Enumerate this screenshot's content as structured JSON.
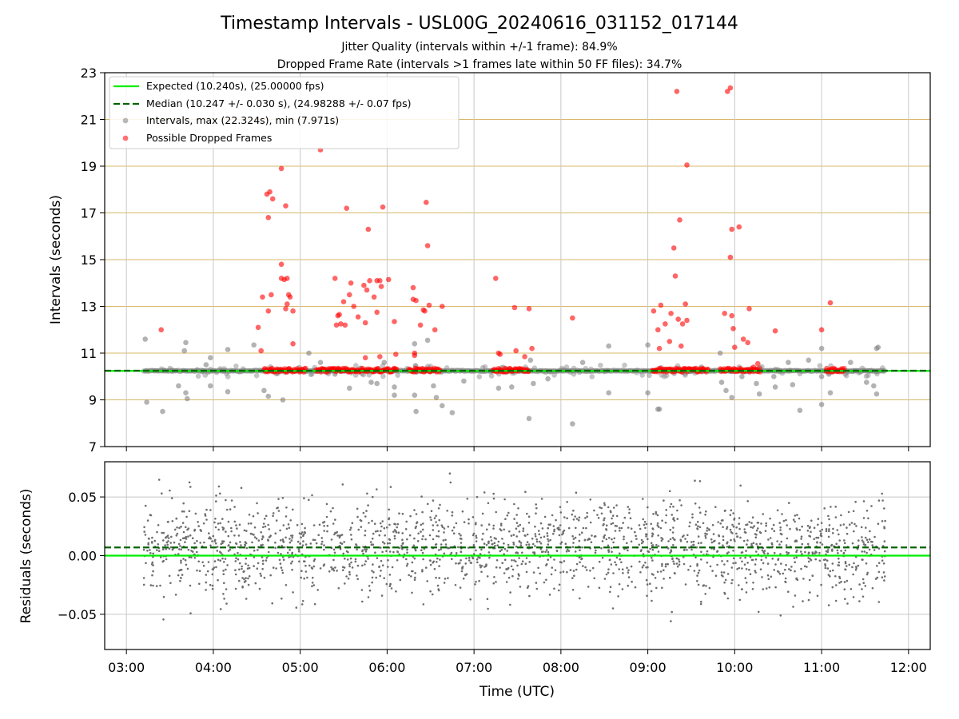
{
  "figure": {
    "title": "Timestamp Intervals - USL00G_20240616_031152_017144",
    "subtitle_line1": "Jitter Quality (intervals within +/-1 frame): 84.9%",
    "subtitle_line2": "Dropped Frame Rate (intervals >1 frames late within 50 FF files): 34.7%"
  },
  "colors": {
    "expected": "#00ee00",
    "median": "#006400",
    "intervals": "#808080",
    "dropped": "#ff0000",
    "hgrid": "#d9b86a",
    "vgrid": "#c8c8c8"
  },
  "chart_data": [
    {
      "type": "scatter",
      "ylabel": "Intervals (seconds)",
      "xlim": [
        "02:45",
        "12:15"
      ],
      "ylim": [
        7,
        23
      ],
      "yticks": [
        7,
        9,
        11,
        13,
        15,
        17,
        19,
        21,
        23
      ],
      "xticks": [
        "03:00",
        "04:00",
        "05:00",
        "06:00",
        "07:00",
        "08:00",
        "09:00",
        "10:00",
        "11:00",
        "12:00"
      ],
      "grid": true,
      "legend_position": "upper-left",
      "reference_lines": [
        {
          "name": "Expected (10.240s), (25.00000 fps)",
          "y": 10.24,
          "style": "solid"
        },
        {
          "name": "Median (10.247 +/- 0.030 s), (24.98288 +/- 0.07 fps)",
          "y": 10.247,
          "style": "dashed"
        }
      ],
      "series": [
        {
          "name": "Intervals, max (22.324s), min (7.971s)",
          "baseline": 10.24,
          "range": [
            "03:12",
            "11:44"
          ],
          "outliers": [
            [
              "03:13",
              11.6
            ],
            [
              "03:14",
              8.9
            ],
            [
              "03:25",
              8.5
            ],
            [
              "03:36",
              9.6
            ],
            [
              "03:40",
              11.1
            ],
            [
              "03:41",
              9.3
            ],
            [
              "03:41",
              11.45
            ],
            [
              "03:42",
              9.05
            ],
            [
              "03:55",
              10.5
            ],
            [
              "03:58",
              10.8
            ],
            [
              "03:58",
              9.6
            ],
            [
              "04:10",
              11.15
            ],
            [
              "04:10",
              9.35
            ],
            [
              "04:28",
              11.35
            ],
            [
              "04:35",
              9.4
            ],
            [
              "04:38",
              9.15
            ],
            [
              "04:48",
              9.0
            ],
            [
              "05:06",
              11.0
            ],
            [
              "05:14",
              10.6
            ],
            [
              "05:24",
              10.1
            ],
            [
              "05:34",
              9.5
            ],
            [
              "05:49",
              9.75
            ],
            [
              "05:53",
              9.7
            ],
            [
              "05:58",
              10.6
            ],
            [
              "06:05",
              9.55
            ],
            [
              "06:05",
              9.2
            ],
            [
              "06:19",
              9.2
            ],
            [
              "06:19",
              11.4
            ],
            [
              "06:20",
              8.5
            ],
            [
              "06:28",
              11.55
            ],
            [
              "06:32",
              9.6
            ],
            [
              "06:34",
              9.1
            ],
            [
              "06:38",
              8.75
            ],
            [
              "06:45",
              8.45
            ],
            [
              "06:53",
              9.8
            ],
            [
              "07:17",
              9.5
            ],
            [
              "07:26",
              9.55
            ],
            [
              "07:39",
              10.7
            ],
            [
              "07:41",
              9.7
            ],
            [
              "07:51",
              9.9
            ],
            [
              "07:38",
              8.2
            ],
            [
              "08:08",
              7.97
            ],
            [
              "08:15",
              10.6
            ],
            [
              "08:33",
              11.3
            ],
            [
              "08:33",
              9.3
            ],
            [
              "09:00",
              9.3
            ],
            [
              "09:00",
              11.35
            ],
            [
              "09:07",
              8.6
            ],
            [
              "09:08",
              8.6
            ],
            [
              "09:37",
              10.4
            ],
            [
              "09:50",
              11.0
            ],
            [
              "09:51",
              9.75
            ],
            [
              "09:54",
              9.4
            ],
            [
              "09:58",
              9.1
            ],
            [
              "10:05",
              10.0
            ],
            [
              "10:10",
              10.3
            ],
            [
              "10:15",
              9.7
            ],
            [
              "10:17",
              9.25
            ],
            [
              "10:27",
              10.0
            ],
            [
              "10:28",
              10.3
            ],
            [
              "10:28",
              9.55
            ],
            [
              "10:37",
              10.6
            ],
            [
              "10:40",
              9.65
            ],
            [
              "10:45",
              8.55
            ],
            [
              "10:51",
              10.7
            ],
            [
              "11:00",
              8.8
            ],
            [
              "11:00",
              11.2
            ],
            [
              "11:00",
              10.0
            ],
            [
              "11:05",
              10.1
            ],
            [
              "11:06",
              9.3
            ],
            [
              "11:20",
              10.6
            ],
            [
              "11:31",
              9.75
            ],
            [
              "11:36",
              9.6
            ],
            [
              "11:38",
              11.2
            ],
            [
              "11:38",
              9.25
            ],
            [
              "11:39",
              11.25
            ]
          ]
        },
        {
          "name": "Possible Dropped Frames",
          "baseline": 10.27,
          "segments": [
            [
              "04:35",
              "05:04"
            ],
            [
              "05:11",
              "06:07"
            ],
            [
              "06:15",
              "06:37"
            ],
            [
              "07:13",
              "07:38"
            ],
            [
              "09:03",
              "09:42"
            ],
            [
              "09:50",
              "10:18"
            ],
            [
              "11:03",
              "11:16"
            ]
          ],
          "points": [
            [
              "03:24",
              12.0
            ],
            [
              "04:31",
              12.1
            ],
            [
              "04:33",
              11.1
            ],
            [
              "04:34",
              13.4
            ],
            [
              "04:37",
              17.8
            ],
            [
              "04:38",
              16.8
            ],
            [
              "04:38",
              12.8
            ],
            [
              "04:39",
              17.9
            ],
            [
              "04:40",
              13.5
            ],
            [
              "04:41",
              17.6
            ],
            [
              "04:47",
              18.9
            ],
            [
              "04:47",
              14.8
            ],
            [
              "04:47",
              14.2
            ],
            [
              "04:49",
              14.15
            ],
            [
              "04:50",
              17.3
            ],
            [
              "04:50",
              12.9
            ],
            [
              "04:51",
              14.2
            ],
            [
              "04:51",
              13.1
            ],
            [
              "04:52",
              13.5
            ],
            [
              "04:53",
              13.4
            ],
            [
              "04:55",
              12.8
            ],
            [
              "04:55",
              11.4
            ],
            [
              "05:14",
              19.7
            ],
            [
              "05:24",
              14.2
            ],
            [
              "05:25",
              12.2
            ],
            [
              "05:26",
              12.6
            ],
            [
              "05:27",
              12.65
            ],
            [
              "05:28",
              12.25
            ],
            [
              "05:30",
              13.2
            ],
            [
              "05:31",
              12.2
            ],
            [
              "05:32",
              17.2
            ],
            [
              "05:34",
              13.5
            ],
            [
              "05:35",
              14.0
            ],
            [
              "05:37",
              13.0
            ],
            [
              "05:40",
              12.55
            ],
            [
              "05:44",
              13.9
            ],
            [
              "05:45",
              10.8
            ],
            [
              "05:45",
              12.3
            ],
            [
              "05:46",
              13.7
            ],
            [
              "05:47",
              16.3
            ],
            [
              "05:48",
              14.1
            ],
            [
              "05:51",
              13.4
            ],
            [
              "05:53",
              14.1
            ],
            [
              "05:53",
              12.75
            ],
            [
              "05:55",
              10.85
            ],
            [
              "05:55",
              14.1
            ],
            [
              "05:57",
              17.25
            ],
            [
              "05:56",
              13.85
            ],
            [
              "06:01",
              14.15
            ],
            [
              "06:05",
              12.35
            ],
            [
              "06:06",
              10.95
            ],
            [
              "06:18",
              13.8
            ],
            [
              "06:18",
              13.3
            ],
            [
              "06:19",
              11.0
            ],
            [
              "06:19",
              10.9
            ],
            [
              "06:20",
              13.25
            ],
            [
              "06:23",
              12.2
            ],
            [
              "06:25",
              12.85
            ],
            [
              "06:26",
              12.8
            ],
            [
              "06:27",
              17.45
            ],
            [
              "06:28",
              15.6
            ],
            [
              "06:29",
              13.05
            ],
            [
              "06:33",
              12.0
            ],
            [
              "06:38",
              13.0
            ],
            [
              "07:15",
              14.2
            ],
            [
              "07:17",
              11.0
            ],
            [
              "07:18",
              10.95
            ],
            [
              "07:28",
              12.95
            ],
            [
              "07:29",
              11.1
            ],
            [
              "07:35",
              10.85
            ],
            [
              "07:38",
              12.9
            ],
            [
              "07:40",
              11.2
            ],
            [
              "08:08",
              12.5
            ],
            [
              "09:04",
              12.8
            ],
            [
              "09:07",
              12.0
            ],
            [
              "09:08",
              11.2
            ],
            [
              "09:09",
              13.05
            ],
            [
              "09:12",
              12.25
            ],
            [
              "09:15",
              11.5
            ],
            [
              "09:16",
              12.7
            ],
            [
              "09:18",
              15.5
            ],
            [
              "09:19",
              14.3
            ],
            [
              "09:20",
              22.2
            ],
            [
              "09:21",
              12.45
            ],
            [
              "09:22",
              16.7
            ],
            [
              "09:23",
              11.3
            ],
            [
              "09:24",
              12.25
            ],
            [
              "09:26",
              13.1
            ],
            [
              "09:27",
              19.05
            ],
            [
              "09:27",
              12.4
            ],
            [
              "09:53",
              12.7
            ],
            [
              "09:55",
              22.2
            ],
            [
              "09:57",
              22.35
            ],
            [
              "09:57",
              15.1
            ],
            [
              "09:58",
              16.3
            ],
            [
              "09:58",
              12.6
            ],
            [
              "09:59",
              12.05
            ],
            [
              "10:00",
              11.25
            ],
            [
              "10:03",
              16.4
            ],
            [
              "10:06",
              11.6
            ],
            [
              "10:09",
              11.45
            ],
            [
              "10:10",
              12.9
            ],
            [
              "10:13",
              10.4
            ],
            [
              "10:16",
              10.55
            ],
            [
              "10:28",
              11.95
            ],
            [
              "11:00",
              12.0
            ],
            [
              "11:06",
              13.15
            ]
          ]
        }
      ]
    },
    {
      "type": "scatter",
      "xlabel": "Time (UTC)",
      "ylabel": "Residuals (seconds)",
      "xlim": [
        "02:45",
        "12:15"
      ],
      "ylim": [
        -0.08,
        0.08
      ],
      "yticks": [
        0.05,
        0.0,
        -0.05
      ],
      "ytick_labels": [
        "0.05",
        "0.00",
        "−0.05"
      ],
      "xticks": [
        "03:00",
        "04:00",
        "05:00",
        "06:00",
        "07:00",
        "08:00",
        "09:00",
        "10:00",
        "11:00",
        "12:00"
      ],
      "grid": true,
      "reference_lines": [
        {
          "name": "Expected",
          "y": 0.0,
          "style": "solid"
        },
        {
          "name": "Median",
          "y": 0.007,
          "style": "dashed"
        }
      ],
      "series": [
        {
          "name": "Residuals",
          "range": [
            "03:12",
            "11:44"
          ],
          "count": 2000,
          "spread": [
            -0.065,
            0.07
          ]
        }
      ]
    }
  ]
}
